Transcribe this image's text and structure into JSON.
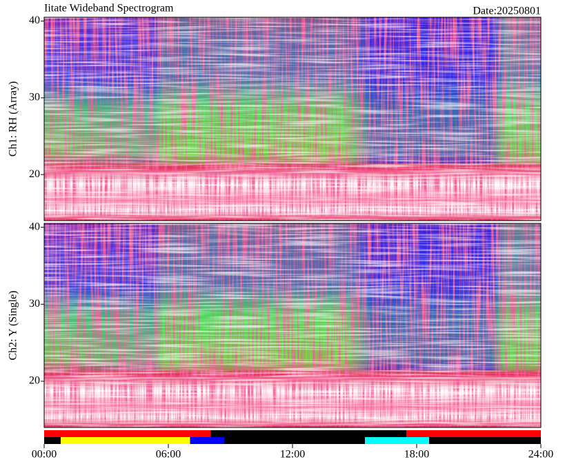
{
  "header": {
    "title": "Iitate Wideband Spectrogram",
    "date": "Date:20250801"
  },
  "chart_data": [
    {
      "type": "heatmap",
      "ylabel": "Ch1: RH (Array)",
      "ylim": [
        14,
        40.5
      ],
      "yticks": [
        20,
        30,
        40
      ],
      "xlim": [
        0,
        24
      ]
    },
    {
      "type": "heatmap",
      "ylabel": "Ch2: Y (Single)",
      "ylim": [
        14,
        40.5
      ],
      "yticks": [
        20,
        30,
        40
      ],
      "xlim": [
        0,
        24
      ],
      "xticks": [
        {
          "value": 0,
          "label": "00:00"
        },
        {
          "value": 6,
          "label": "06:00"
        },
        {
          "value": 12,
          "label": "12:00"
        },
        {
          "value": 18,
          "label": "18:00"
        },
        {
          "value": 24,
          "label": "24:00"
        }
      ]
    }
  ],
  "status_bars": [
    {
      "segments": [
        {
          "start": 0,
          "end": 8.05,
          "color": "#ff0000"
        },
        {
          "start": 8.05,
          "end": 17.5,
          "color": "#000000"
        },
        {
          "start": 17.5,
          "end": 24,
          "color": "#ff0000"
        }
      ]
    },
    {
      "segments": [
        {
          "start": 0,
          "end": 0.8,
          "color": "#000000"
        },
        {
          "start": 0.8,
          "end": 7.05,
          "color": "#ffff00"
        },
        {
          "start": 7.05,
          "end": 8.7,
          "color": "#0000ff"
        },
        {
          "start": 8.7,
          "end": 15.5,
          "color": "#000000"
        },
        {
          "start": 15.5,
          "end": 18.6,
          "color": "#00ffff"
        },
        {
          "start": 18.6,
          "end": 24,
          "color": "#000000"
        }
      ]
    }
  ]
}
